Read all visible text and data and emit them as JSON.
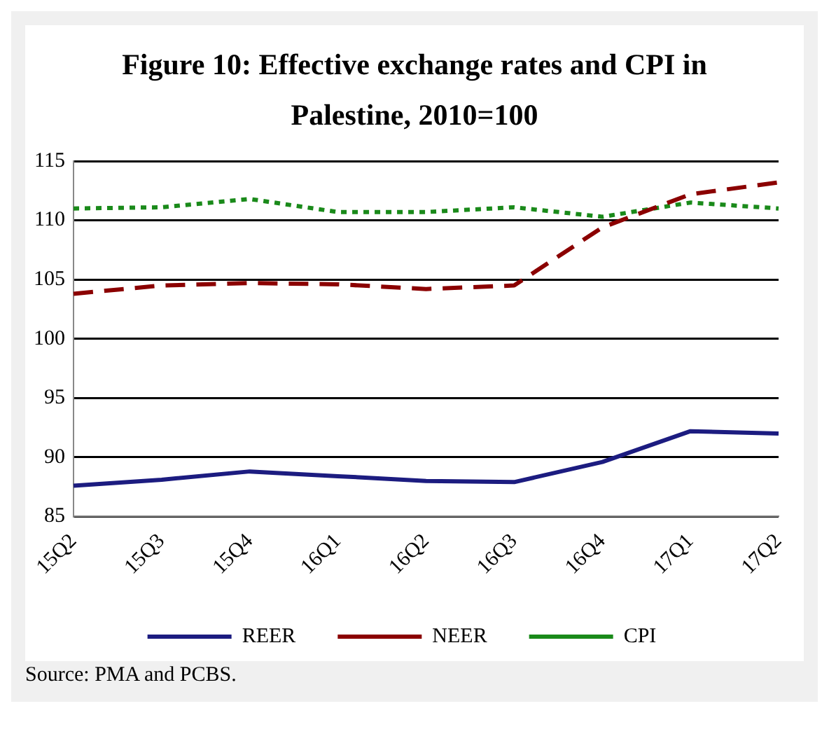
{
  "chart_data": {
    "type": "line",
    "title": "Figure 10: Effective exchange rates and CPI in Palestine, 2010=100",
    "categories": [
      "15Q2",
      "15Q3",
      "15Q4",
      "16Q1",
      "16Q2",
      "16Q3",
      "16Q4",
      "17Q1",
      "17Q2"
    ],
    "series": [
      {
        "name": "REER",
        "color": "#1c1c80",
        "line_style": "solid",
        "values": [
          87.6,
          88.1,
          88.8,
          88.4,
          88.0,
          87.9,
          89.6,
          92.2,
          92.0
        ]
      },
      {
        "name": "NEER",
        "color": "#8b0000",
        "line_style": "dashed",
        "values": [
          103.8,
          104.5,
          104.7,
          104.6,
          104.2,
          104.5,
          109.4,
          112.2,
          113.2
        ]
      },
      {
        "name": "CPI",
        "color": "#1a8a1a",
        "line_style": "dotted",
        "values": [
          111.0,
          111.1,
          111.8,
          110.7,
          110.7,
          111.1,
          110.3,
          111.5,
          111.0
        ]
      }
    ],
    "ylim": [
      85,
      115
    ],
    "yticks": [
      85,
      90,
      95,
      100,
      105,
      110,
      115
    ],
    "grid": "y",
    "legend": "bottom",
    "marker": "none",
    "annotations": [
      "Source: PMA and PCBS."
    ]
  }
}
